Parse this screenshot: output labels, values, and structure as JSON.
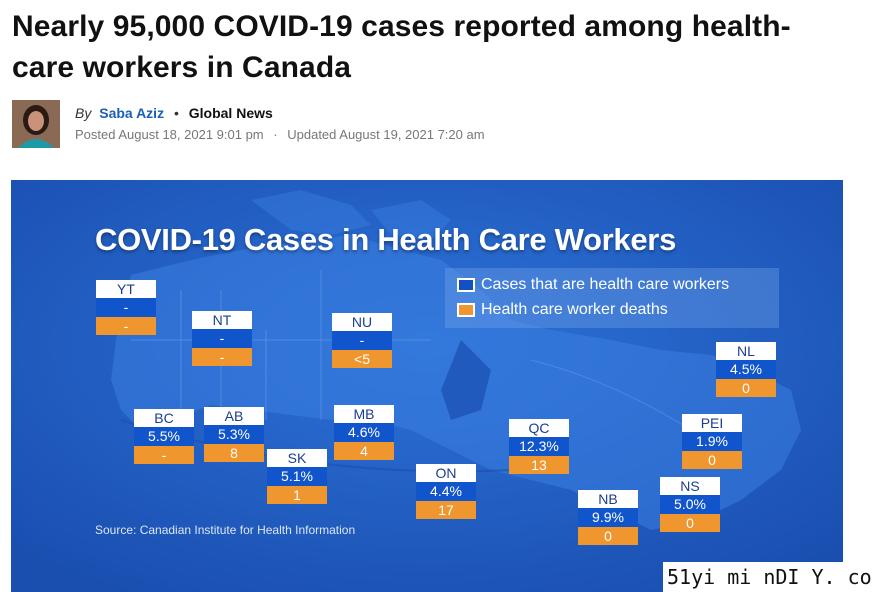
{
  "article": {
    "headline": "Nearly 95,000 COVID-19 cases reported among health-care workers in Canada",
    "byline": {
      "by": "By",
      "author": "Saba Aziz",
      "separator": "•",
      "outlet": "Global News",
      "posted": "Posted August 18, 2021 9:01 pm",
      "date_separator": "·",
      "updated": "Updated August 19, 2021 7:20 am"
    }
  },
  "graphic": {
    "title": "COVID-19 Cases in Health Care Workers",
    "legend": {
      "cases": "Cases that are health care workers",
      "deaths": "Health care worker deaths"
    },
    "source": "Source: Canadian Institute for Health Information",
    "colors": {
      "background": "#1f5fc8",
      "land": "#2f6fd2",
      "cases_box": "#1155cc",
      "deaths_box": "#f0962e"
    },
    "provinces": [
      {
        "code": "YT",
        "cases": "-",
        "deaths": "-"
      },
      {
        "code": "NT",
        "cases": "-",
        "deaths": "-"
      },
      {
        "code": "NU",
        "cases": "-",
        "deaths": "<5"
      },
      {
        "code": "NL",
        "cases": "4.5%",
        "deaths": "0"
      },
      {
        "code": "BC",
        "cases": "5.5%",
        "deaths": "-"
      },
      {
        "code": "AB",
        "cases": "5.3%",
        "deaths": "8"
      },
      {
        "code": "MB",
        "cases": "4.6%",
        "deaths": "4"
      },
      {
        "code": "SK",
        "cases": "5.1%",
        "deaths": "1"
      },
      {
        "code": "ON",
        "cases": "4.4%",
        "deaths": "17"
      },
      {
        "code": "QC",
        "cases": "12.3%",
        "deaths": "13"
      },
      {
        "code": "PEI",
        "cases": "1.9%",
        "deaths": "0"
      },
      {
        "code": "NB",
        "cases": "9.9%",
        "deaths": "0"
      },
      {
        "code": "NS",
        "cases": "5.0%",
        "deaths": "0"
      }
    ]
  },
  "watermark": "51yi mi nDI Y. co"
}
